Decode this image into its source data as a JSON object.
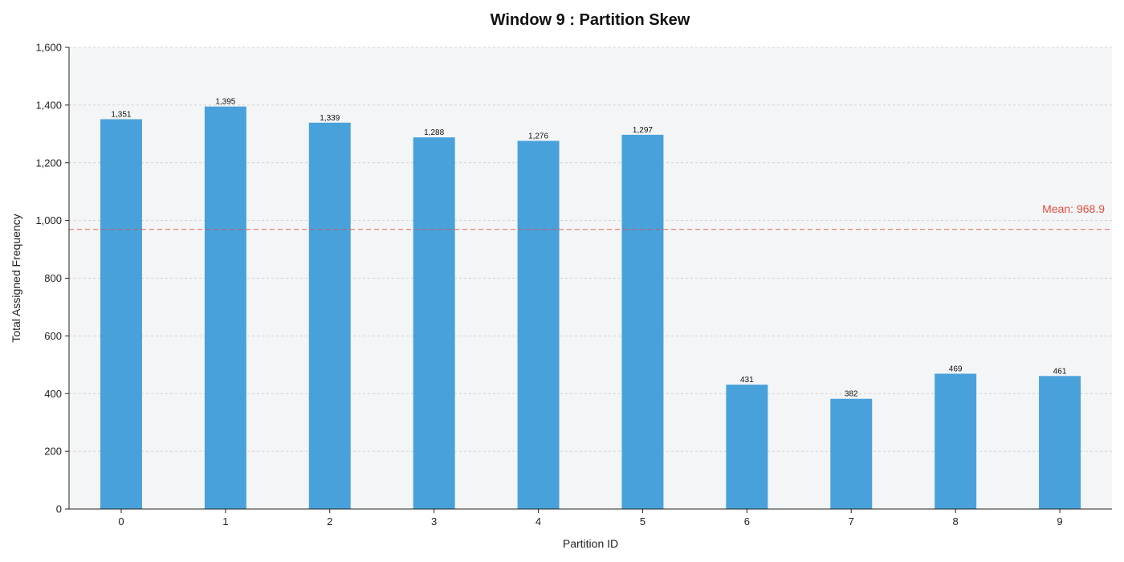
{
  "chart_data": {
    "type": "bar",
    "title": "Window 9 : Partition Skew",
    "xlabel": "Partition ID",
    "ylabel": "Total Assigned Frequency",
    "categories": [
      "0",
      "1",
      "2",
      "3",
      "4",
      "5",
      "6",
      "7",
      "8",
      "9"
    ],
    "values": [
      1351,
      1395,
      1339,
      1288,
      1276,
      1297,
      431,
      382,
      469,
      461
    ],
    "data_labels": [
      "1,351",
      "1,395",
      "1,339",
      "1,288",
      "1,276",
      "1,297",
      "431",
      "382",
      "469",
      "461"
    ],
    "ylim": [
      0,
      1600
    ],
    "yticks": [
      0,
      200,
      400,
      600,
      800,
      1000,
      1200,
      1400,
      1600
    ],
    "ytick_labels": [
      "0",
      "200",
      "400",
      "600",
      "800",
      "1,000",
      "1,200",
      "1,400",
      "1,600"
    ],
    "grid": true,
    "mean": {
      "value": 968.9,
      "label": "Mean: 968.9",
      "color": "#e74c3c"
    },
    "colors": {
      "bar": "#48a1db",
      "plot_background": "#f4f5f7",
      "grid": "#c8c8c8"
    }
  }
}
